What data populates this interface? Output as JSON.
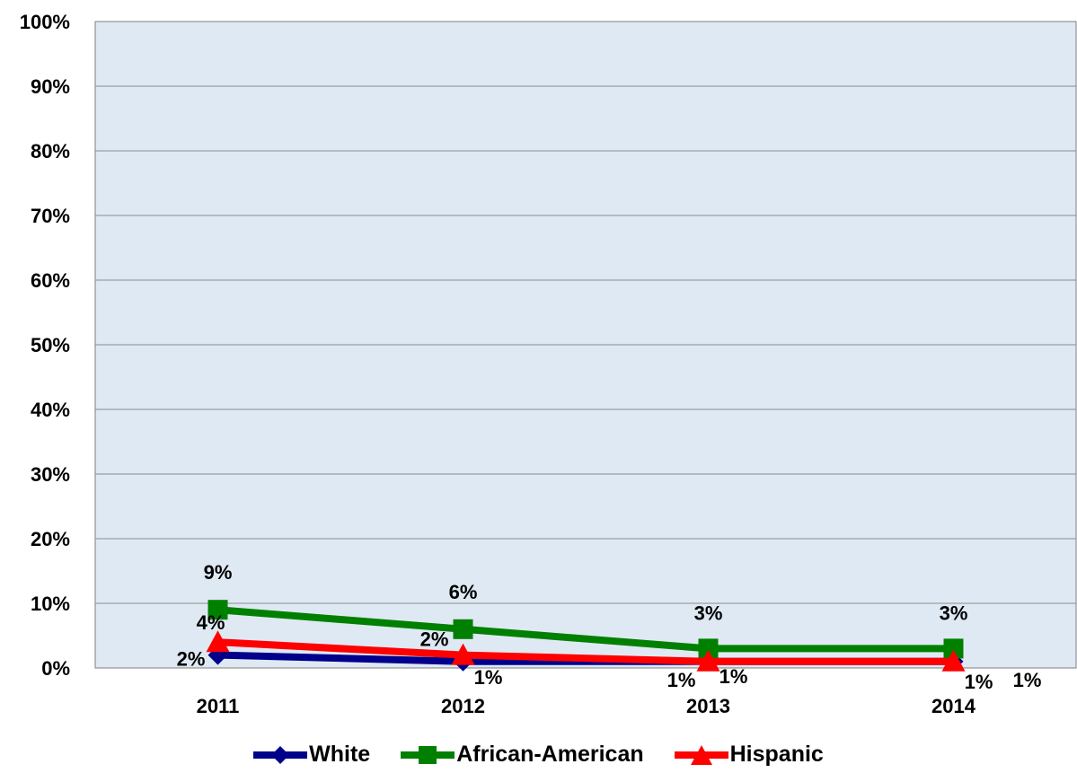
{
  "chart_data": {
    "type": "line",
    "categories": [
      "2011",
      "2012",
      "2013",
      "2014"
    ],
    "ylim": [
      0,
      100
    ],
    "yticks": [
      "0%",
      "10%",
      "20%",
      "30%",
      "40%",
      "50%",
      "60%",
      "70%",
      "80%",
      "90%",
      "100%"
    ],
    "grid": true,
    "legend_position": "bottom",
    "plot_background": "#dfe9f3",
    "series": [
      {
        "name": "White",
        "values": [
          2,
          1,
          1,
          1
        ],
        "labels": [
          "2%",
          "1%",
          "1%",
          "1%"
        ],
        "color": "#00008b",
        "marker": "diamond"
      },
      {
        "name": "African-American",
        "values": [
          9,
          6,
          3,
          3
        ],
        "labels": [
          "9%",
          "6%",
          "3%",
          "3%"
        ],
        "color": "#008000",
        "marker": "square"
      },
      {
        "name": "Hispanic",
        "values": [
          4,
          2,
          1,
          1
        ],
        "labels": [
          "4%",
          "2%",
          "1%",
          "1%"
        ],
        "color": "#ff0000",
        "marker": "triangle"
      }
    ]
  }
}
